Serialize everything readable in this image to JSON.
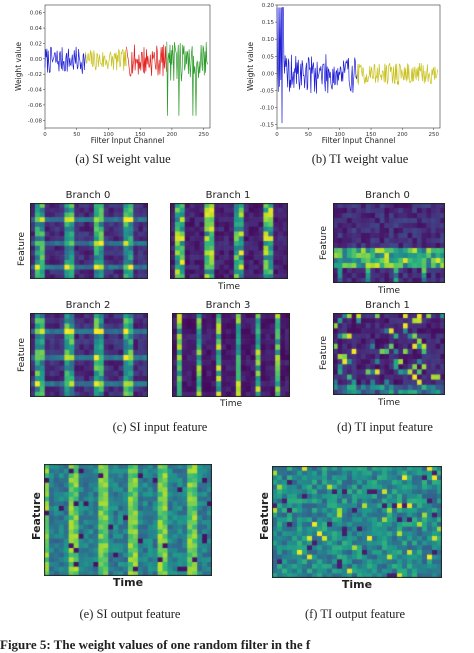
{
  "captions": {
    "a": "(a)  SI weight value",
    "b": "(b)  TI weight value",
    "c": "(c)  SI input feature",
    "d": "(d)  TI input feature",
    "e": "(e)  SI output feature",
    "f": "(f)  TI output feature"
  },
  "figure_caption": "Figure 5: The weight values of one random filter in the f",
  "colors": {
    "blue": "#1f1fd6",
    "red": "#e0201c",
    "green": "#2a9a28",
    "yellow": "#c8c21e",
    "viridis_dark": "#440154",
    "viridis_yellow": "#fde725"
  },
  "chart_data": [
    {
      "type": "line",
      "panel": "a",
      "xlabel": "Filter Input Channel",
      "ylabel": "Weight value",
      "xlim": [
        0,
        260
      ],
      "ylim": [
        -0.09,
        0.07
      ],
      "xticks": [
        "0",
        "50",
        "100",
        "150",
        "200",
        "250"
      ],
      "yticks": [
        "0.06",
        "0.04",
        "0.02",
        "0.00",
        "-0.02",
        "-0.04",
        "-0.06",
        "-0.08"
      ],
      "series": [
        {
          "color": "blue",
          "x_range": [
            0,
            64
          ]
        },
        {
          "color": "yellow",
          "x_range": [
            64,
            128
          ]
        },
        {
          "color": "red",
          "x_range": [
            128,
            192
          ]
        },
        {
          "color": "green",
          "x_range": [
            192,
            256
          ]
        }
      ]
    },
    {
      "type": "line",
      "panel": "b",
      "xlabel": "Filter Input Channel",
      "ylabel": "Weight value",
      "xlim": [
        0,
        260
      ],
      "ylim": [
        -0.16,
        0.2
      ],
      "xticks": [
        "0",
        "50",
        "100",
        "150",
        "200",
        "250"
      ],
      "yticks": [
        "0.20",
        "0.15",
        "0.10",
        "0.05",
        "0.00",
        "-0.05",
        "-0.10",
        "-0.15"
      ],
      "series": [
        {
          "color": "blue",
          "x_range": [
            0,
            128
          ]
        },
        {
          "color": "yellow",
          "x_range": [
            128,
            256
          ]
        }
      ]
    },
    {
      "type": "heatmap",
      "panel": "c",
      "subplots": [
        {
          "title": "Branch 0",
          "xlabel": "",
          "ylabel": "Feature",
          "pattern": "stripes-4"
        },
        {
          "title": "Branch 1",
          "xlabel": "Time",
          "ylabel": "",
          "pattern": "stripes-4-bright"
        },
        {
          "title": "Branch 2",
          "xlabel": "",
          "ylabel": "Feature",
          "pattern": "stripes-4"
        },
        {
          "title": "Branch 3",
          "xlabel": "Time",
          "ylabel": "",
          "pattern": "lines-6"
        }
      ]
    },
    {
      "type": "heatmap",
      "panel": "d",
      "subplots": [
        {
          "title": "Branch 0",
          "xlabel": "Time",
          "ylabel": "Feature",
          "pattern": "band-bottom"
        },
        {
          "title": "Branch 1",
          "xlabel": "Time",
          "ylabel": "Feature",
          "pattern": "sparse"
        }
      ]
    },
    {
      "type": "heatmap",
      "panel": "e",
      "xlabel": "Time",
      "ylabel": "Feature",
      "pattern": "dense-stripes"
    },
    {
      "type": "heatmap",
      "panel": "f",
      "xlabel": "Time",
      "ylabel": "Feature",
      "pattern": "dense-noise"
    }
  ]
}
